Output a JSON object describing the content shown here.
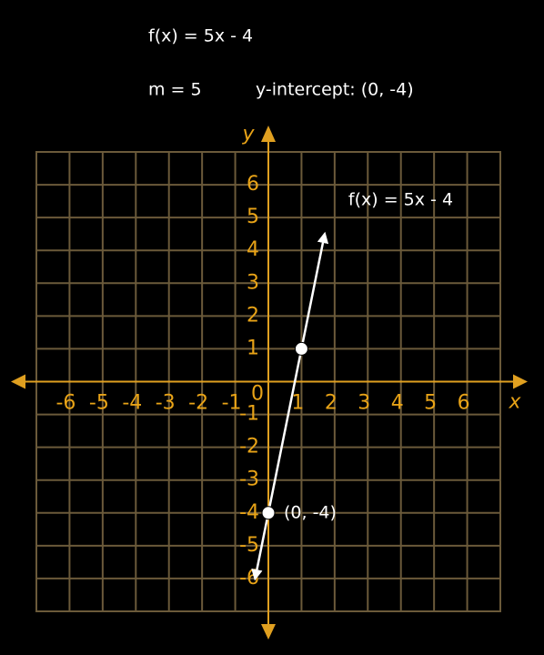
{
  "chart_data": {
    "type": "line",
    "title": "f(x) =  5x - 4",
    "slope_text": "m = 5",
    "intercept_text": "y-intercept: (0, -4)",
    "x_label": "x",
    "y_label": "y",
    "origin_label": "0",
    "xlim": [
      -7,
      7
    ],
    "ylim": [
      -7,
      7
    ],
    "xticks": [
      -6,
      -5,
      -4,
      -3,
      -2,
      -1,
      1,
      2,
      3,
      4,
      5,
      6
    ],
    "yticks": [
      -6,
      -5,
      -4,
      -3,
      -2,
      -1,
      1,
      2,
      3,
      4,
      5,
      6
    ],
    "grid": true,
    "grid_color": "#6b5a3a",
    "axis_color": "#e0a020",
    "series": [
      {
        "name": "f(x) = 5x - 4",
        "color": "#ffffff",
        "x": [
          -0.4,
          1.7
        ],
        "values": [
          -6,
          4.5
        ]
      }
    ],
    "points": {
      "x": [
        0,
        1
      ],
      "values": [
        -4,
        1
      ],
      "labels": [
        "(0, -4)",
        null
      ]
    }
  }
}
